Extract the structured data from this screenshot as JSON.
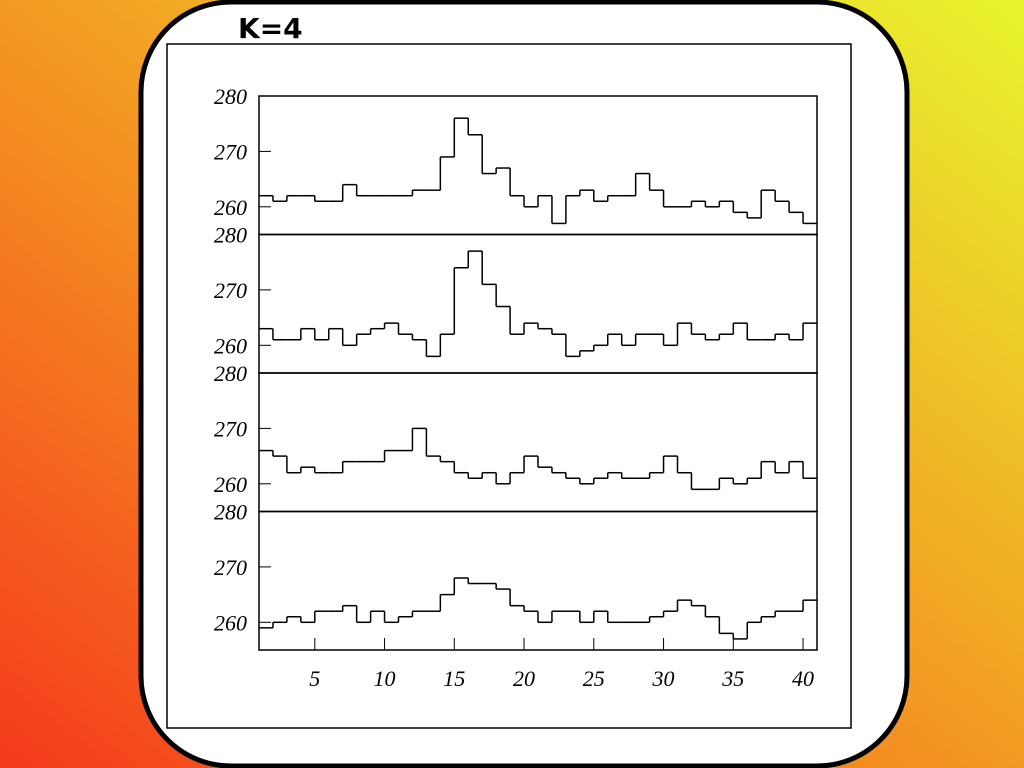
{
  "title": "K=4",
  "chart_data": [
    {
      "type": "histogram",
      "bins": [
        1,
        2,
        3,
        4,
        5,
        6,
        7,
        8,
        9,
        10,
        11,
        12,
        13,
        14,
        15,
        16,
        17,
        18,
        19,
        20,
        21,
        22,
        23,
        24,
        25,
        26,
        27,
        28,
        29,
        30,
        31,
        32,
        33,
        34,
        35,
        36,
        37,
        38,
        39,
        40,
        41
      ],
      "values": [
        262,
        261,
        262,
        262,
        261,
        261,
        264,
        262,
        262,
        262,
        262,
        263,
        263,
        269,
        276,
        273,
        266,
        267,
        262,
        260,
        262,
        257,
        262,
        263,
        261,
        262,
        262,
        266,
        263,
        260,
        260,
        261,
        260,
        261,
        259,
        258,
        263,
        261,
        259,
        257
      ],
      "color": "#000000",
      "xlim": [
        1,
        41
      ],
      "ylim": [
        255,
        280
      ],
      "yticks": [
        260,
        270,
        280
      ]
    },
    {
      "type": "histogram",
      "bins": [
        1,
        2,
        3,
        4,
        5,
        6,
        7,
        8,
        9,
        10,
        11,
        12,
        13,
        14,
        15,
        16,
        17,
        18,
        19,
        20,
        21,
        22,
        23,
        24,
        25,
        26,
        27,
        28,
        29,
        30,
        31,
        32,
        33,
        34,
        35,
        36,
        37,
        38,
        39,
        40,
        41
      ],
      "values": [
        263,
        261,
        261,
        263,
        261,
        263,
        260,
        262,
        263,
        264,
        262,
        261,
        258,
        262,
        274,
        277,
        271,
        267,
        262,
        264,
        263,
        262,
        258,
        259,
        260,
        262,
        260,
        262,
        262,
        260,
        264,
        262,
        261,
        262,
        264,
        261,
        261,
        262,
        261,
        264
      ],
      "color": "#000000",
      "xlim": [
        1,
        41
      ],
      "ylim": [
        255,
        280
      ],
      "yticks": [
        260,
        270,
        280
      ]
    },
    {
      "type": "histogram",
      "bins": [
        1,
        2,
        3,
        4,
        5,
        6,
        7,
        8,
        9,
        10,
        11,
        12,
        13,
        14,
        15,
        16,
        17,
        18,
        19,
        20,
        21,
        22,
        23,
        24,
        25,
        26,
        27,
        28,
        29,
        30,
        31,
        32,
        33,
        34,
        35,
        36,
        37,
        38,
        39,
        40,
        41
      ],
      "values": [
        266,
        265,
        262,
        263,
        262,
        262,
        264,
        264,
        264,
        266,
        266,
        270,
        265,
        264,
        262,
        261,
        262,
        260,
        262,
        265,
        263,
        262,
        261,
        260,
        261,
        262,
        261,
        261,
        262,
        265,
        262,
        259,
        259,
        261,
        260,
        261,
        264,
        262,
        264,
        261
      ],
      "color": "#000000",
      "xlim": [
        1,
        41
      ],
      "ylim": [
        255,
        280
      ],
      "yticks": [
        260,
        270,
        280
      ]
    },
    {
      "type": "histogram",
      "bins": [
        1,
        2,
        3,
        4,
        5,
        6,
        7,
        8,
        9,
        10,
        11,
        12,
        13,
        14,
        15,
        16,
        17,
        18,
        19,
        20,
        21,
        22,
        23,
        24,
        25,
        26,
        27,
        28,
        29,
        30,
        31,
        32,
        33,
        34,
        35,
        36,
        37,
        38,
        39,
        40,
        41
      ],
      "values": [
        259,
        260,
        261,
        260,
        262,
        262,
        263,
        260,
        262,
        260,
        261,
        262,
        262,
        265,
        268,
        267,
        267,
        266,
        263,
        262,
        260,
        262,
        262,
        260,
        262,
        260,
        260,
        260,
        261,
        262,
        264,
        263,
        261,
        258,
        257,
        260,
        261,
        262,
        262,
        264
      ],
      "color": "#000000",
      "xlim": [
        1,
        41
      ],
      "ylim": [
        255,
        280
      ],
      "yticks": [
        260,
        270,
        280
      ],
      "xticks": [
        5,
        10,
        15,
        20,
        25,
        30,
        35,
        40
      ]
    }
  ]
}
